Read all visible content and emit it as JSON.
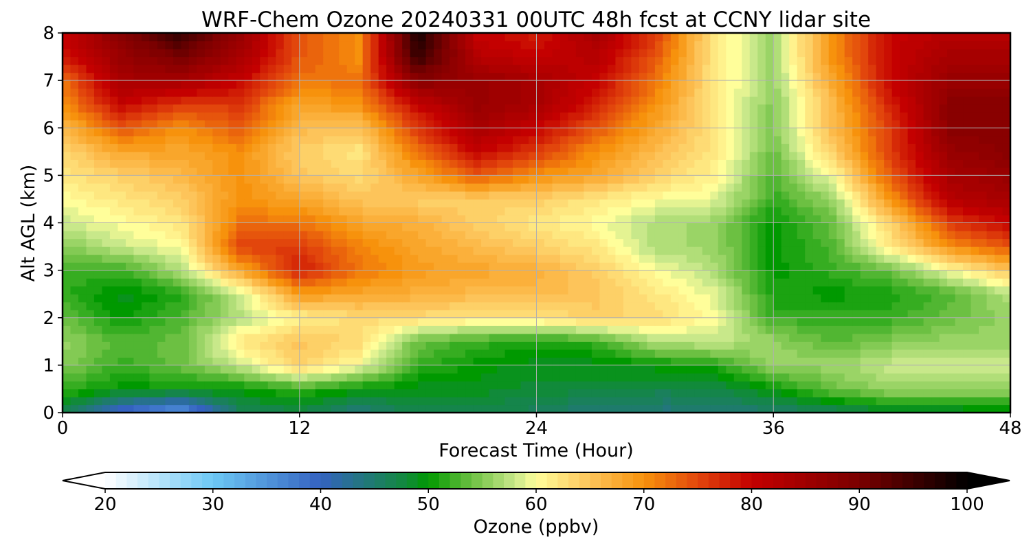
{
  "chart_data": {
    "type": "heatmap",
    "title": "WRF-Chem Ozone  20240331 00UTC 48h fcst at CCNY lidar site",
    "xlabel": "Forecast Time (Hour)",
    "ylabel": "Alt AGL (km)",
    "xlim": [
      0,
      48
    ],
    "ylim": [
      0,
      8
    ],
    "xticks": [
      0,
      12,
      24,
      36,
      48
    ],
    "yticks": [
      0,
      1,
      2,
      3,
      4,
      5,
      6,
      7,
      8
    ],
    "grid": true,
    "x": [
      0,
      3,
      6,
      9,
      12,
      15,
      18,
      21,
      24,
      27,
      30,
      33,
      36,
      39,
      42,
      45,
      48
    ],
    "y": [
      0,
      0.5,
      1,
      1.5,
      2,
      2.5,
      3,
      3.5,
      4,
      4.5,
      5,
      5.5,
      6,
      6.5,
      7,
      7.5,
      8
    ],
    "z": [
      [
        47,
        38,
        34,
        46,
        47,
        44,
        47,
        47,
        46,
        44,
        44,
        44,
        45,
        46,
        48,
        48,
        49
      ],
      [
        52,
        50,
        50,
        50,
        52,
        50,
        49,
        49,
        48,
        48,
        47,
        47,
        50,
        54,
        56,
        56,
        56
      ],
      [
        55,
        52,
        54,
        58,
        64,
        60,
        52,
        50,
        49,
        49,
        50,
        51,
        56,
        56,
        58,
        58,
        58
      ],
      [
        56,
        53,
        54,
        62,
        65,
        63,
        54,
        52,
        51,
        52,
        57,
        58,
        56,
        53,
        55,
        56,
        56
      ],
      [
        54,
        50,
        53,
        57,
        61,
        63,
        63,
        62,
        62,
        64,
        63,
        60,
        52,
        52,
        52,
        54,
        56
      ],
      [
        52,
        49,
        51,
        58,
        69,
        68,
        67,
        66,
        66,
        65,
        62,
        59,
        51,
        50,
        51,
        53,
        57
      ],
      [
        52,
        52,
        57,
        68,
        78,
        72,
        69,
        68,
        67,
        64,
        60,
        57,
        50,
        52,
        54,
        60,
        65
      ],
      [
        55,
        58,
        60,
        75,
        76,
        71,
        68,
        66,
        64,
        62,
        57,
        56,
        50,
        53,
        62,
        70,
        74
      ],
      [
        58,
        60,
        62,
        72,
        72,
        68,
        67,
        64,
        62,
        60,
        57,
        56,
        50,
        54,
        64,
        76,
        80
      ],
      [
        60,
        62,
        64,
        70,
        68,
        65,
        64,
        64,
        64,
        62,
        60,
        59,
        52,
        56,
        70,
        82,
        84
      ],
      [
        62,
        64,
        66,
        70,
        65,
        63,
        68,
        74,
        70,
        68,
        64,
        61,
        53,
        60,
        74,
        84,
        86
      ],
      [
        63,
        68,
        68,
        70,
        64,
        62,
        72,
        80,
        76,
        70,
        66,
        62,
        54,
        64,
        76,
        86,
        88
      ],
      [
        66,
        74,
        70,
        74,
        66,
        65,
        76,
        84,
        80,
        74,
        68,
        62,
        55,
        66,
        76,
        88,
        88
      ],
      [
        70,
        80,
        76,
        76,
        68,
        70,
        80,
        86,
        84,
        78,
        70,
        62,
        55,
        66,
        78,
        88,
        88
      ],
      [
        72,
        84,
        84,
        80,
        72,
        72,
        88,
        86,
        84,
        80,
        72,
        62,
        56,
        68,
        80,
        86,
        86
      ],
      [
        78,
        86,
        90,
        84,
        74,
        70,
        96,
        82,
        80,
        82,
        74,
        62,
        56,
        70,
        80,
        84,
        84
      ],
      [
        80,
        88,
        96,
        86,
        74,
        70,
        98,
        80,
        78,
        84,
        76,
        62,
        56,
        70,
        80,
        82,
        82
      ]
    ],
    "colorbar": {
      "label": "Ozone  (ppbv)",
      "min": 20,
      "max": 100,
      "ticks": [
        20,
        30,
        40,
        50,
        60,
        70,
        80,
        90,
        100
      ],
      "extend": "both",
      "stops": [
        {
          "v": 20,
          "c": "#ffffff"
        },
        {
          "v": 30,
          "c": "#6dc8f5"
        },
        {
          "v": 40,
          "c": "#3462c0"
        },
        {
          "v": 48,
          "c": "#118a3a"
        },
        {
          "v": 50,
          "c": "#009900"
        },
        {
          "v": 54,
          "c": "#6cc042"
        },
        {
          "v": 58,
          "c": "#c8e88a"
        },
        {
          "v": 60,
          "c": "#fffe9a"
        },
        {
          "v": 65,
          "c": "#fdc45a"
        },
        {
          "v": 70,
          "c": "#f7920c"
        },
        {
          "v": 75,
          "c": "#e2460c"
        },
        {
          "v": 80,
          "c": "#c40000"
        },
        {
          "v": 90,
          "c": "#7a0000"
        },
        {
          "v": 100,
          "c": "#000000"
        }
      ]
    }
  }
}
